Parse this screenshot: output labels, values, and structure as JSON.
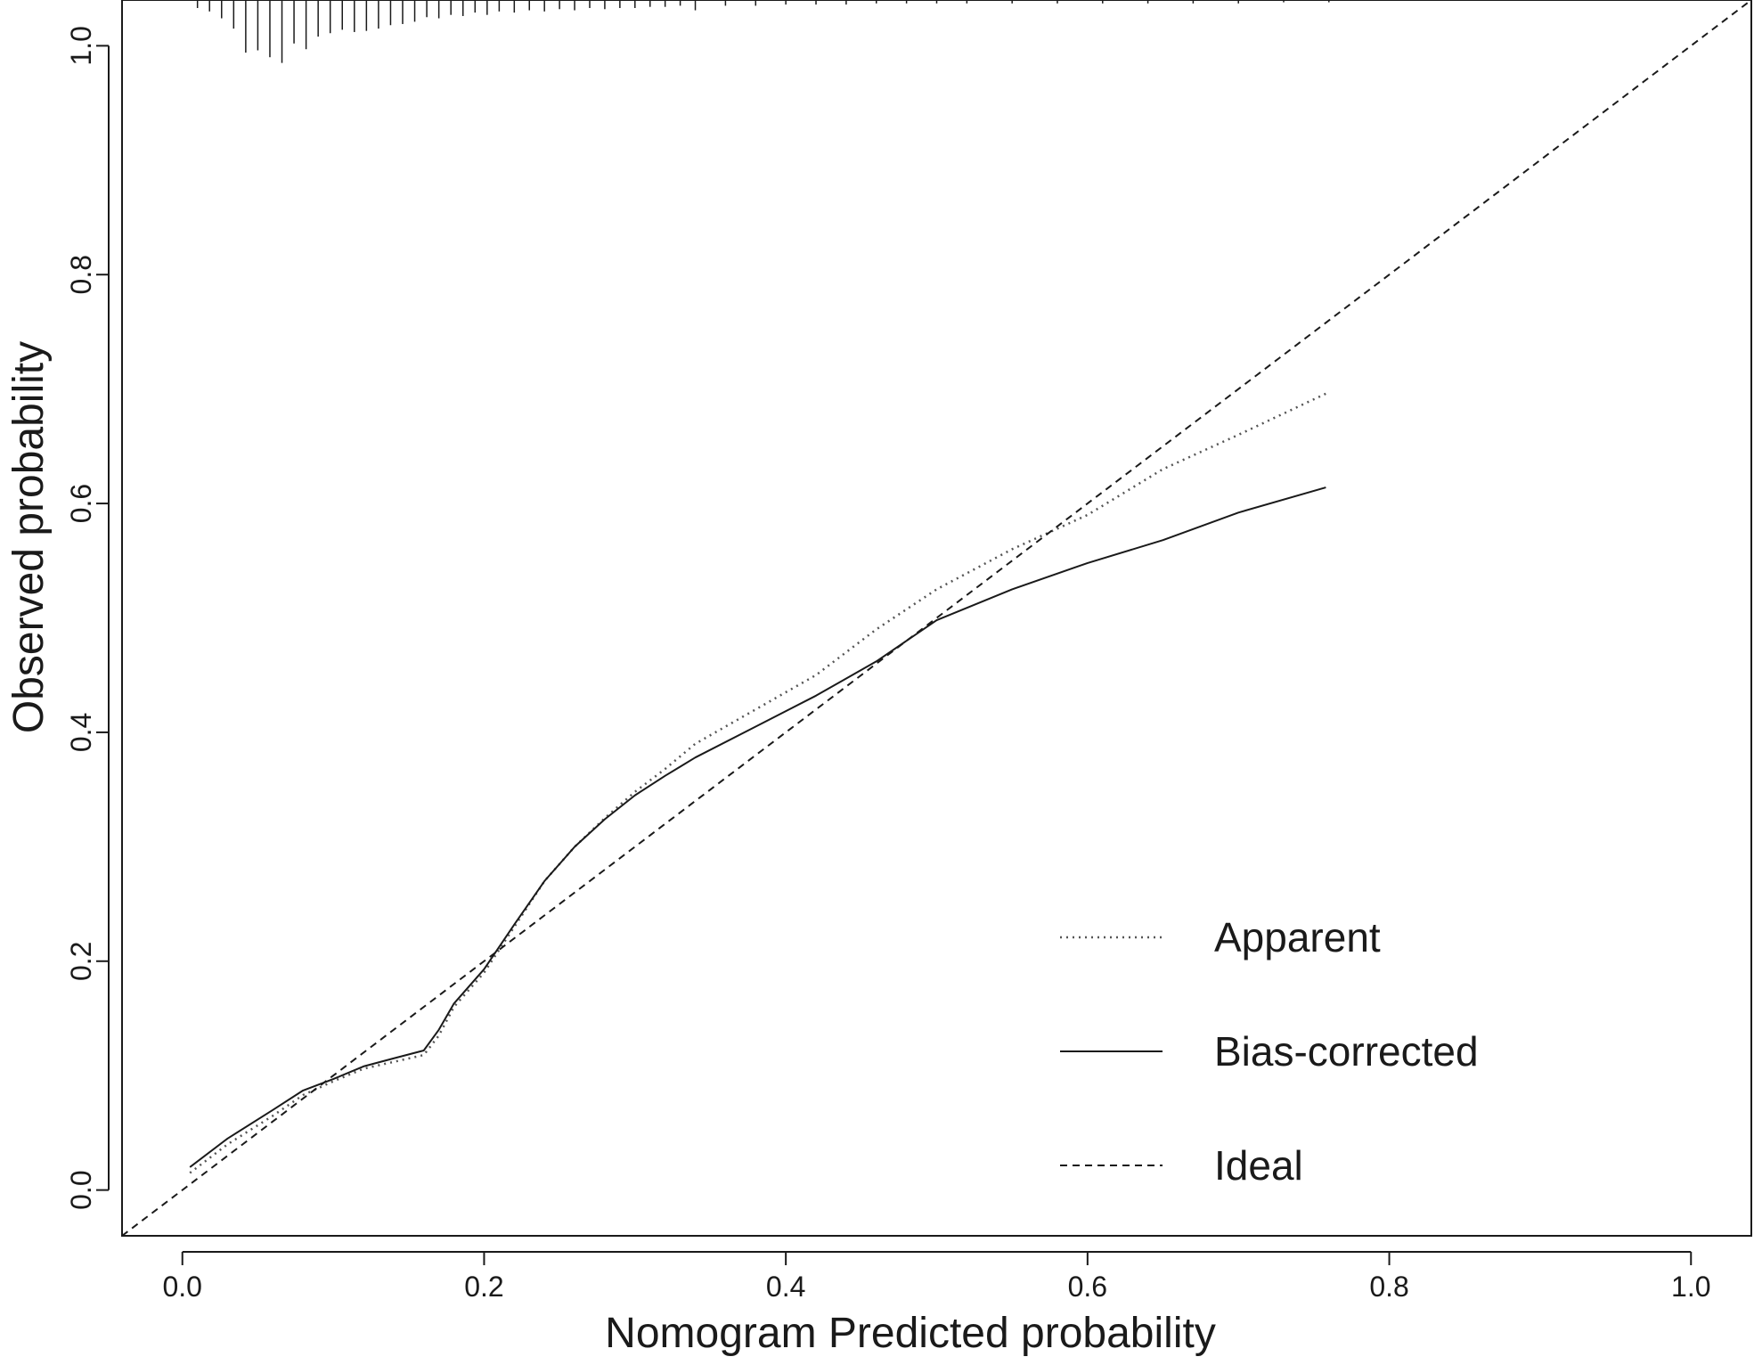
{
  "chart_data": {
    "type": "line",
    "title": "",
    "xlabel": "Nomogram Predicted probability",
    "ylabel": "Observed probability",
    "xlim": [
      -0.04,
      1.04
    ],
    "ylim": [
      -0.04,
      1.04
    ],
    "x_ticks": [
      0.0,
      0.2,
      0.4,
      0.6,
      0.8,
      1.0
    ],
    "x_tick_labels": [
      "0.0",
      "0.2",
      "0.4",
      "0.6",
      "0.8",
      "1.0"
    ],
    "y_ticks": [
      0.0,
      0.2,
      0.4,
      0.6,
      0.8,
      1.0
    ],
    "y_tick_labels": [
      "0.0",
      "0.2",
      "0.4",
      "0.6",
      "0.8",
      "1.0"
    ],
    "grid": false,
    "legend_position": "bottom-right",
    "series": [
      {
        "name": "Apparent",
        "style": "dotted",
        "color": "#555555",
        "x": [
          0.005,
          0.03,
          0.06,
          0.08,
          0.1,
          0.12,
          0.14,
          0.16,
          0.17,
          0.18,
          0.2,
          0.22,
          0.24,
          0.26,
          0.28,
          0.3,
          0.32,
          0.34,
          0.38,
          0.42,
          0.46,
          0.5,
          0.55,
          0.6,
          0.65,
          0.7,
          0.758
        ],
        "y": [
          0.015,
          0.04,
          0.065,
          0.083,
          0.095,
          0.106,
          0.112,
          0.118,
          0.135,
          0.16,
          0.19,
          0.23,
          0.27,
          0.3,
          0.325,
          0.348,
          0.368,
          0.39,
          0.42,
          0.45,
          0.49,
          0.525,
          0.56,
          0.59,
          0.63,
          0.66,
          0.696
        ]
      },
      {
        "name": "Bias-corrected",
        "style": "solid",
        "color": "#1a1a1a",
        "x": [
          0.005,
          0.03,
          0.06,
          0.08,
          0.1,
          0.12,
          0.14,
          0.16,
          0.17,
          0.18,
          0.2,
          0.22,
          0.24,
          0.26,
          0.28,
          0.3,
          0.32,
          0.34,
          0.38,
          0.42,
          0.46,
          0.5,
          0.55,
          0.6,
          0.65,
          0.7,
          0.758
        ],
        "y": [
          0.02,
          0.045,
          0.07,
          0.087,
          0.097,
          0.108,
          0.115,
          0.122,
          0.14,
          0.163,
          0.193,
          0.232,
          0.27,
          0.3,
          0.324,
          0.345,
          0.362,
          0.378,
          0.405,
          0.432,
          0.462,
          0.498,
          0.525,
          0.548,
          0.568,
          0.592,
          0.614
        ]
      },
      {
        "name": "Ideal",
        "style": "dashed",
        "color": "#1a1a1a",
        "x": [
          -0.04,
          1.04
        ],
        "y": [
          -0.04,
          1.04
        ]
      }
    ],
    "rug": {
      "x": [
        0.01,
        0.018,
        0.026,
        0.034,
        0.042,
        0.05,
        0.058,
        0.066,
        0.074,
        0.082,
        0.09,
        0.098,
        0.106,
        0.114,
        0.122,
        0.13,
        0.138,
        0.146,
        0.154,
        0.162,
        0.17,
        0.178,
        0.186,
        0.194,
        0.202,
        0.21,
        0.22,
        0.23,
        0.24,
        0.25,
        0.26,
        0.27,
        0.28,
        0.29,
        0.3,
        0.31,
        0.32,
        0.33,
        0.34,
        0.36,
        0.38,
        0.4,
        0.42,
        0.44,
        0.46,
        0.48,
        0.5,
        0.52,
        0.55,
        0.58,
        0.61,
        0.64,
        0.67,
        0.7,
        0.73,
        0.76
      ],
      "length": [
        0.007,
        0.01,
        0.016,
        0.025,
        0.046,
        0.044,
        0.05,
        0.055,
        0.038,
        0.043,
        0.032,
        0.029,
        0.026,
        0.028,
        0.027,
        0.025,
        0.022,
        0.021,
        0.019,
        0.015,
        0.016,
        0.013,
        0.014,
        0.011,
        0.013,
        0.01,
        0.011,
        0.009,
        0.01,
        0.008,
        0.009,
        0.007,
        0.008,
        0.007,
        0.007,
        0.006,
        0.006,
        0.005,
        0.009,
        0.005,
        0.005,
        0.004,
        0.004,
        0.004,
        0.003,
        0.003,
        0.003,
        0.003,
        0.003,
        0.003,
        0.003,
        0.003,
        0.003,
        0.003,
        0.002,
        0.002
      ]
    }
  }
}
